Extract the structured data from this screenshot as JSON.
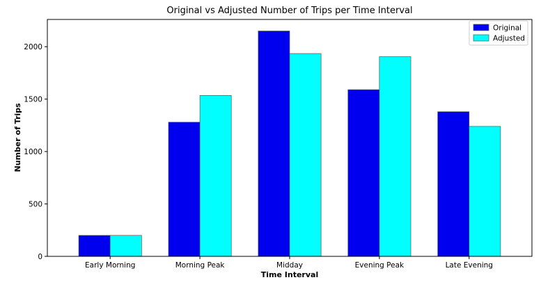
{
  "chart_data": {
    "type": "bar",
    "title": "Original vs Adjusted Number of Trips per Time Interval",
    "xlabel": "Time Interval",
    "ylabel": "Number of Trips",
    "categories": [
      "Early Morning",
      "Morning Peak",
      "Midday",
      "Evening Peak",
      "Late Evening"
    ],
    "series": [
      {
        "name": "Original",
        "color": "#0000ee",
        "values": [
          200,
          1280,
          2150,
          1590,
          1380
        ]
      },
      {
        "name": "Adjusted",
        "color": "#00ffff",
        "values": [
          200,
          1535,
          1935,
          1905,
          1240
        ]
      }
    ],
    "ylim": [
      0,
      2260
    ],
    "yticks": [
      0,
      500,
      1000,
      1500,
      2000
    ],
    "legend_position": "top-right",
    "grid": false
  }
}
